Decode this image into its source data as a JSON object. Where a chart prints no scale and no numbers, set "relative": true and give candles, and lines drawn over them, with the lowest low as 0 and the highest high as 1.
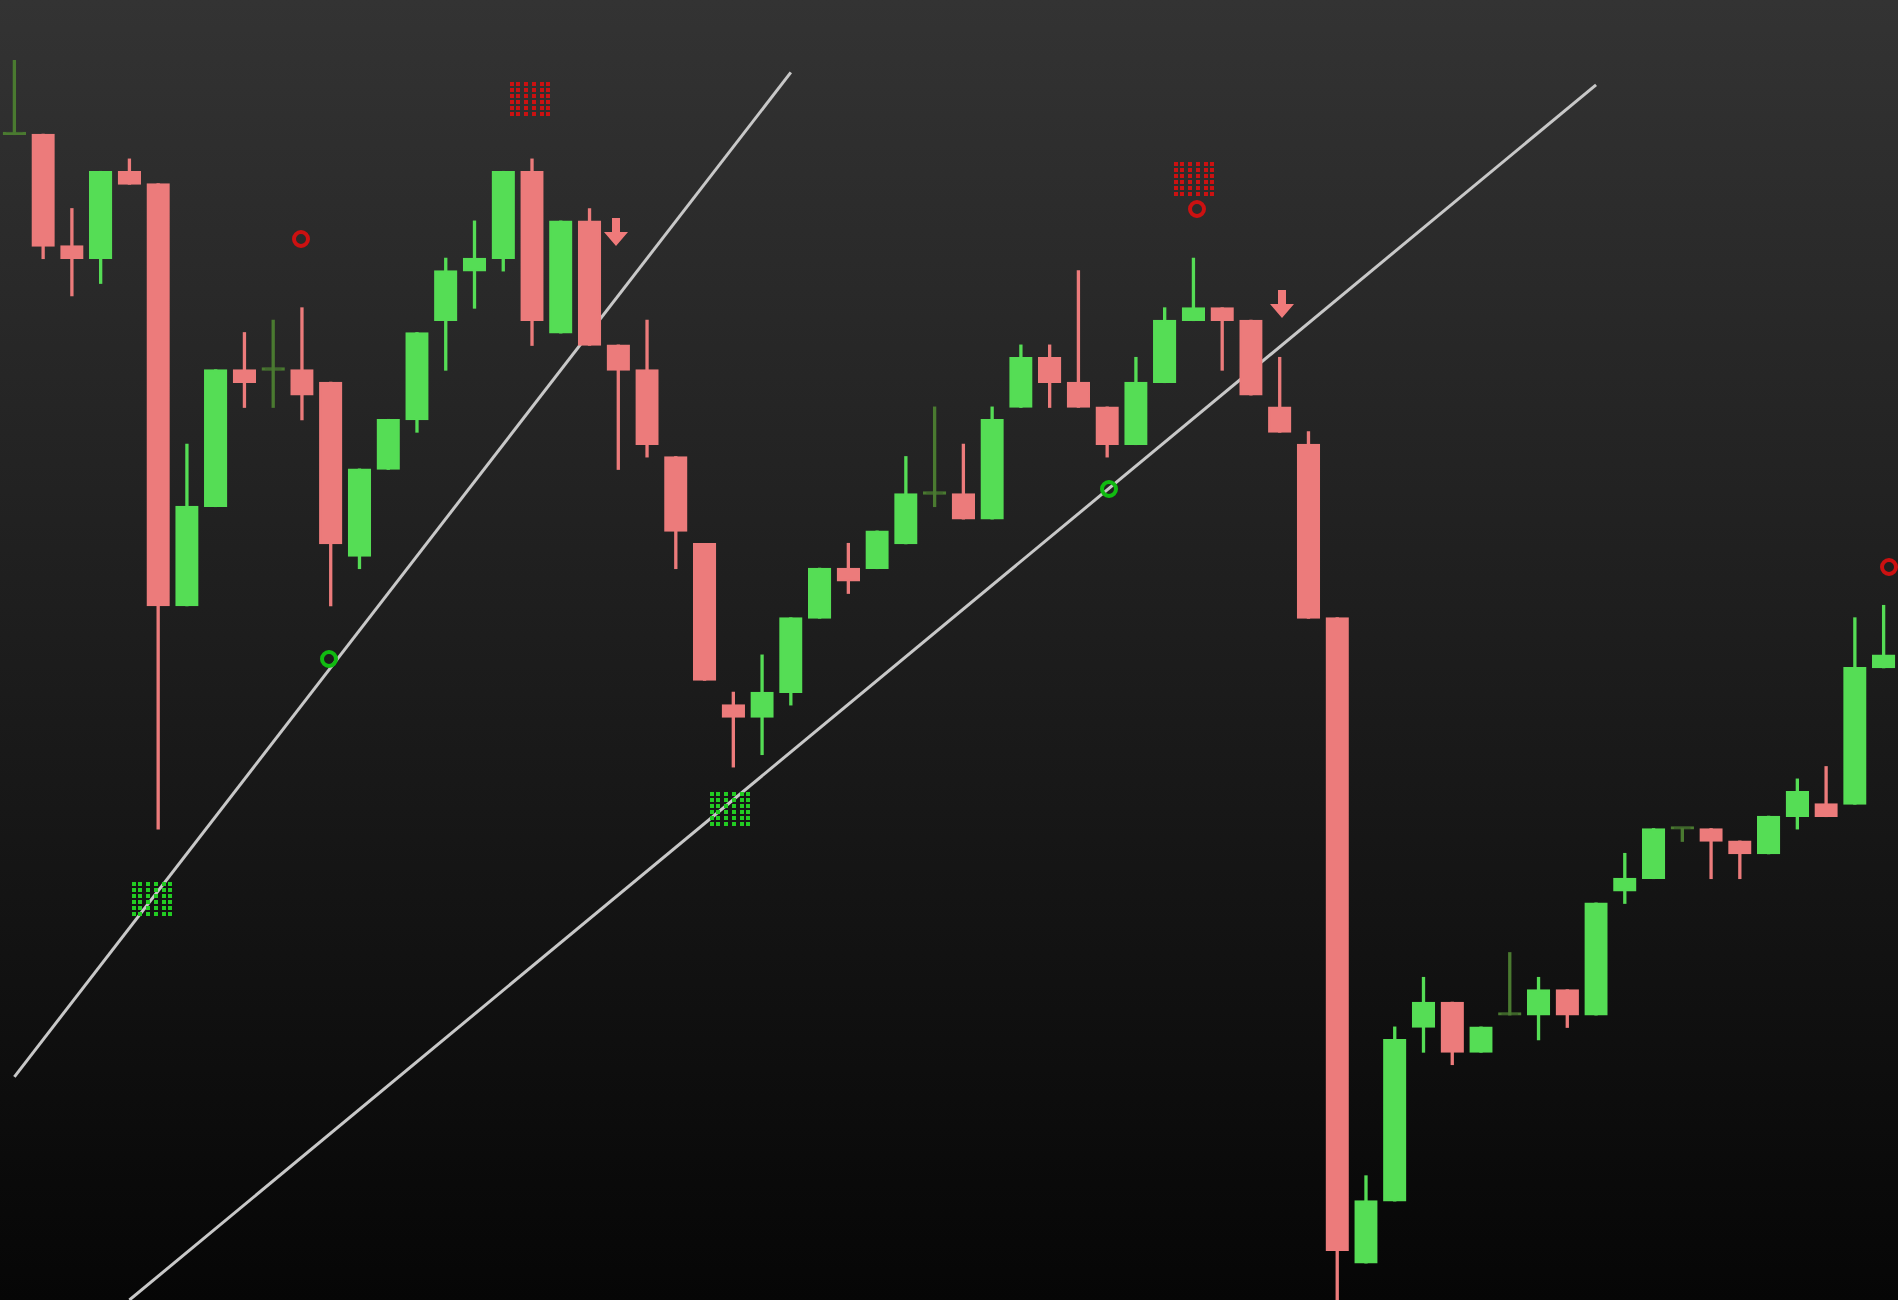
{
  "chart_data": {
    "type": "candlestick",
    "relative": true,
    "categories": [
      null,
      null,
      null,
      null,
      null,
      null,
      null,
      null,
      null,
      null,
      null,
      null,
      null,
      null,
      null,
      null,
      null,
      null,
      null,
      null,
      null,
      null,
      null,
      null,
      null,
      null,
      null,
      null,
      null,
      null,
      null,
      null,
      null,
      null,
      null,
      null,
      null,
      null,
      null,
      null,
      null,
      null,
      null,
      null,
      null,
      null,
      null,
      null,
      null,
      null,
      null,
      null,
      null,
      null,
      null,
      null,
      null,
      null,
      null,
      null,
      null,
      null,
      null,
      null,
      null,
      null
    ],
    "ohlc": [
      [
        0.94,
        1,
        0.94,
        0.94
      ],
      [
        0.94,
        0.94,
        0.84,
        0.85
      ],
      [
        0.85,
        0.88,
        0.81,
        0.84
      ],
      [
        0.84,
        0.91,
        0.82,
        0.91
      ],
      [
        0.91,
        0.92,
        0.9,
        0.9
      ],
      [
        0.9,
        0.9,
        0.38,
        0.56
      ],
      [
        0.56,
        0.69,
        0.56,
        0.64
      ],
      [
        0.64,
        0.75,
        0.64,
        0.75
      ],
      [
        0.75,
        0.78,
        0.72,
        0.74
      ],
      [
        0.75,
        0.79,
        0.72,
        0.75
      ],
      [
        0.75,
        0.8,
        0.71,
        0.73
      ],
      [
        0.74,
        0.74,
        0.56,
        0.61
      ],
      [
        0.6,
        0.67,
        0.59,
        0.67
      ],
      [
        0.67,
        0.71,
        0.67,
        0.71
      ],
      [
        0.71,
        0.78,
        0.7,
        0.78
      ],
      [
        0.79,
        0.84,
        0.75,
        0.83
      ],
      [
        0.83,
        0.87,
        0.8,
        0.84
      ],
      [
        0.84,
        0.91,
        0.83,
        0.91
      ],
      [
        0.91,
        0.92,
        0.77,
        0.79
      ],
      [
        0.78,
        0.87,
        0.78,
        0.87
      ],
      [
        0.87,
        0.88,
        0.77,
        0.77
      ],
      [
        0.77,
        0.77,
        0.67,
        0.75
      ],
      [
        0.75,
        0.79,
        0.68,
        0.69
      ],
      [
        0.68,
        0.68,
        0.59,
        0.62
      ],
      [
        0.61,
        0.61,
        0.5,
        0.5
      ],
      [
        0.48,
        0.49,
        0.43,
        0.47
      ],
      [
        0.47,
        0.52,
        0.44,
        0.49
      ],
      [
        0.49,
        0.55,
        0.48,
        0.55
      ],
      [
        0.55,
        0.59,
        0.55,
        0.59
      ],
      [
        0.59,
        0.61,
        0.57,
        0.58
      ],
      [
        0.59,
        0.62,
        0.59,
        0.62
      ],
      [
        0.61,
        0.68,
        0.61,
        0.65
      ],
      [
        0.65,
        0.72,
        0.64,
        0.65
      ],
      [
        0.65,
        0.69,
        0.63,
        0.63
      ],
      [
        0.63,
        0.72,
        0.63,
        0.71
      ],
      [
        0.72,
        0.77,
        0.72,
        0.76
      ],
      [
        0.76,
        0.77,
        0.72,
        0.74
      ],
      [
        0.74,
        0.83,
        0.72,
        0.72
      ],
      [
        0.72,
        0.72,
        0.68,
        0.69
      ],
      [
        0.69,
        0.76,
        0.69,
        0.74
      ],
      [
        0.74,
        0.8,
        0.74,
        0.79
      ],
      [
        0.79,
        0.84,
        0.79,
        0.8
      ],
      [
        0.8,
        0.8,
        0.75,
        0.79
      ],
      [
        0.79,
        0.79,
        0.73,
        0.73
      ],
      [
        0.72,
        0.76,
        0.7,
        0.7
      ],
      [
        0.69,
        0.7,
        0.55,
        0.55
      ],
      [
        0.55,
        0.55,
        0,
        0.04
      ],
      [
        0.03,
        0.1,
        0.03,
        0.08
      ],
      [
        0.08,
        0.22,
        0.08,
        0.21
      ],
      [
        0.22,
        0.26,
        0.2,
        0.24
      ],
      [
        0.24,
        0.24,
        0.19,
        0.2
      ],
      [
        0.2,
        0.22,
        0.2,
        0.22
      ],
      [
        0.23,
        0.28,
        0.23,
        0.23
      ],
      [
        0.23,
        0.26,
        0.21,
        0.25
      ],
      [
        0.25,
        0.25,
        0.22,
        0.23
      ],
      [
        0.23,
        0.32,
        0.23,
        0.32
      ],
      [
        0.33,
        0.36,
        0.32,
        0.34
      ],
      [
        0.34,
        0.38,
        0.34,
        0.38
      ],
      [
        0.38,
        0.38,
        0.37,
        0.38
      ],
      [
        0.38,
        0.38,
        0.34,
        0.37
      ],
      [
        0.37,
        0.37,
        0.34,
        0.36
      ],
      [
        0.36,
        0.39,
        0.36,
        0.39
      ],
      [
        0.39,
        0.42,
        0.38,
        0.41
      ],
      [
        0.4,
        0.43,
        0.39,
        0.39
      ],
      [
        0.4,
        0.55,
        0.4,
        0.51
      ],
      [
        0.51,
        0.56,
        0.51,
        0.52
      ]
    ],
    "colors": [
      "#4a7a30",
      "#ec7b7b",
      "#ec7b7b",
      "#55dd55",
      "#ec7b7b",
      "#ec7b7b",
      "#55dd55",
      "#55dd55",
      "#ec7b7b",
      "#4a7a30",
      "#ec7b7b",
      "#ec7b7b",
      "#55dd55",
      "#55dd55",
      "#55dd55",
      "#55dd55",
      "#55dd55",
      "#55dd55",
      "#ec7b7b",
      "#55dd55",
      "#ec7b7b",
      "#ec7b7b",
      "#ec7b7b",
      "#ec7b7b",
      "#ec7b7b",
      "#ec7b7b",
      "#55dd55",
      "#55dd55",
      "#55dd55",
      "#ec7b7b",
      "#55dd55",
      "#55dd55",
      "#4a7a30",
      "#ec7b7b",
      "#55dd55",
      "#55dd55",
      "#ec7b7b",
      "#ec7b7b",
      "#ec7b7b",
      "#55dd55",
      "#55dd55",
      "#55dd55",
      "#ec7b7b",
      "#ec7b7b",
      "#ec7b7b",
      "#ec7b7b",
      "#ec7b7b",
      "#55dd55",
      "#55dd55",
      "#55dd55",
      "#ec7b7b",
      "#55dd55",
      "#4a7a30",
      "#55dd55",
      "#ec7b7b",
      "#55dd55",
      "#55dd55",
      "#55dd55",
      "#4a7a30",
      "#ec7b7b",
      "#ec7b7b",
      "#55dd55",
      "#55dd55",
      "#ec7b7b",
      "#55dd55",
      "#55dd55"
    ],
    "series": [
      {
        "type": "line",
        "color": "#c8c8c8",
        "values": [
          0.18,
          null,
          null,
          null,
          null,
          null,
          null,
          null,
          null,
          null,
          null,
          null,
          null,
          null,
          null,
          null,
          null,
          null,
          null,
          null,
          null,
          null,
          null,
          null,
          null,
          null,
          null,
          0.99,
          null,
          null,
          null,
          null,
          null,
          null,
          null,
          null,
          null,
          null,
          null,
          null,
          null,
          null,
          null,
          null,
          null,
          null,
          null,
          null,
          null,
          null,
          null,
          null,
          null,
          null,
          null,
          null,
          null,
          null,
          null,
          null,
          null,
          null,
          null,
          null,
          null,
          null
        ]
      },
      {
        "type": "line",
        "color": "#c8c8c8",
        "values": [
          null,
          null,
          null,
          null,
          0,
          null,
          null,
          null,
          null,
          null,
          null,
          null,
          null,
          null,
          null,
          null,
          null,
          null,
          null,
          null,
          null,
          null,
          null,
          null,
          null,
          null,
          null,
          null,
          null,
          null,
          null,
          null,
          null,
          null,
          null,
          null,
          null,
          null,
          null,
          null,
          null,
          null,
          null,
          null,
          null,
          null,
          null,
          null,
          null,
          null,
          null,
          null,
          null,
          null,
          null,
          0.98,
          null,
          null,
          null,
          null,
          null,
          null,
          null,
          null,
          null,
          null
        ]
      }
    ]
  }
}
